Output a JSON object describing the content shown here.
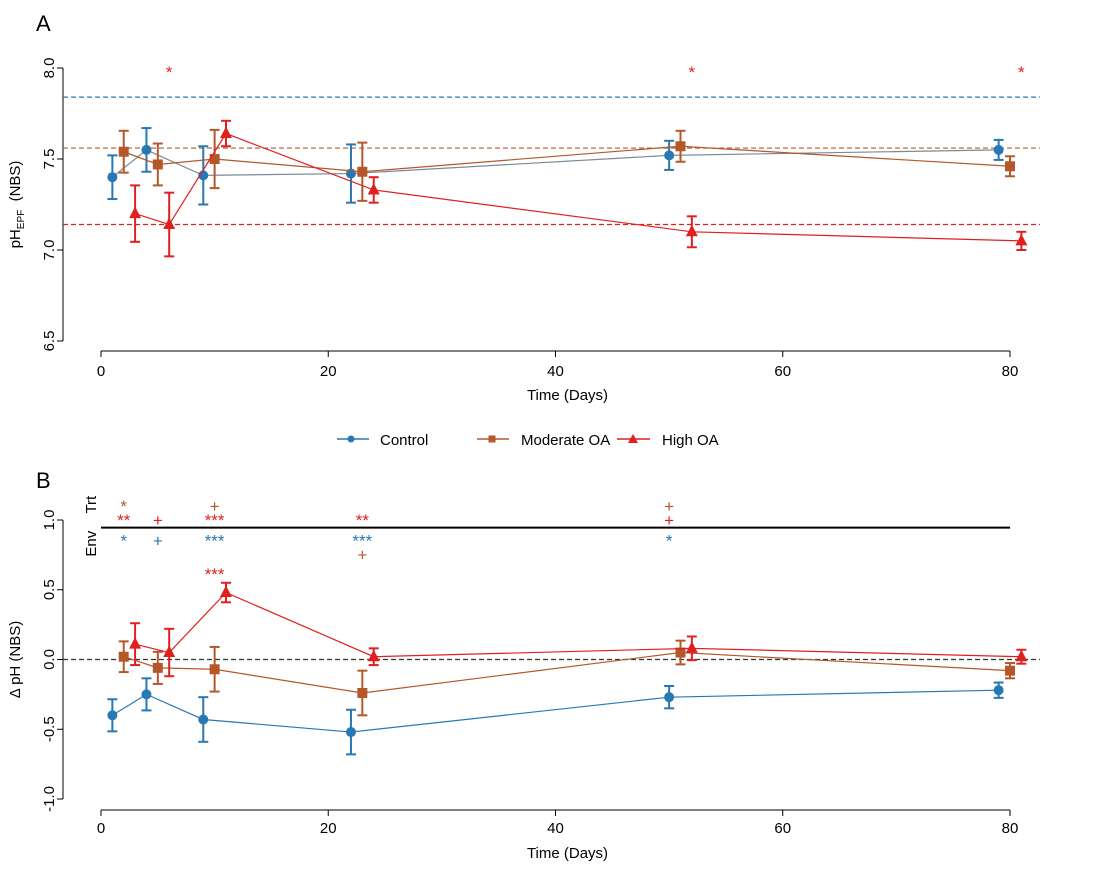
{
  "legend": {
    "control": "Control",
    "moderate": "Moderate OA",
    "high": "High OA"
  },
  "colors": {
    "control": "#2878b4",
    "moderate": "#b4582a",
    "high": "#e02020"
  },
  "chart_data": [
    {
      "panel": "A",
      "type": "line",
      "xlabel": "Time (Days)",
      "ylabel_main": "pH",
      "ylabel_sub": "EPF",
      "ylabel_suffix": "(NBS)",
      "xlim": [
        0,
        85
      ],
      "ylim": [
        6.5,
        8.0
      ],
      "xticks": [
        0,
        20,
        40,
        60,
        80
      ],
      "yticks": [
        6.5,
        7.0,
        7.5,
        8.0
      ],
      "ytick_labels": [
        "6.5",
        "7.0",
        "7.5",
        "8.0"
      ],
      "hlines": [
        {
          "series": "control",
          "y": 7.84
        },
        {
          "series": "moderate",
          "y": 7.56
        },
        {
          "series": "high",
          "y": 7.14
        }
      ],
      "series": [
        {
          "key": "control",
          "marker": "circle",
          "x": [
            1,
            4,
            9,
            22,
            50,
            79
          ],
          "y": [
            7.4,
            7.55,
            7.41,
            7.42,
            7.52,
            7.55
          ],
          "err": [
            0.12,
            0.12,
            0.16,
            0.16,
            0.08,
            0.055
          ]
        },
        {
          "key": "moderate",
          "marker": "square",
          "x": [
            2,
            5,
            10,
            23,
            51,
            80
          ],
          "y": [
            7.54,
            7.47,
            7.5,
            7.43,
            7.57,
            7.46
          ],
          "err": [
            0.115,
            0.115,
            0.16,
            0.16,
            0.085,
            0.055
          ]
        },
        {
          "key": "high",
          "marker": "triangle",
          "x": [
            3,
            6,
            11,
            24,
            52,
            81
          ],
          "y": [
            7.2,
            7.14,
            7.64,
            7.33,
            7.1,
            7.05
          ],
          "err": [
            0.155,
            0.175,
            0.07,
            0.07,
            0.085,
            0.05
          ]
        }
      ],
      "annotations": [
        {
          "text": "*",
          "x": 6,
          "series": "high"
        },
        {
          "text": "*",
          "x": 52,
          "series": "high"
        },
        {
          "text": "*",
          "x": 81,
          "series": "high"
        }
      ]
    },
    {
      "panel": "B",
      "type": "line",
      "xlabel": "Time (Days)",
      "ylabel": "Δ pH (NBS)",
      "xlim": [
        0,
        85
      ],
      "ylim": [
        -1.0,
        1.0
      ],
      "xticks": [
        0,
        20,
        40,
        60,
        80
      ],
      "yticks": [
        -1.0,
        -0.5,
        0.0,
        0.5,
        1.0
      ],
      "ytick_labels": [
        "-1.0",
        "-0.5",
        "0.0",
        "0.5",
        "1.0"
      ],
      "hline_zero": 0.0,
      "separator": {
        "y": 0.945,
        "x_from": 0,
        "x_to": 80
      },
      "row_labels": {
        "trt": "Trt",
        "env": "Env"
      },
      "series": [
        {
          "key": "control",
          "marker": "circle",
          "x": [
            1,
            4,
            9,
            22,
            50,
            79
          ],
          "y": [
            -0.4,
            -0.25,
            -0.43,
            -0.52,
            -0.27,
            -0.22
          ],
          "err": [
            0.115,
            0.115,
            0.16,
            0.16,
            0.08,
            0.055
          ]
        },
        {
          "key": "moderate",
          "marker": "square",
          "x": [
            2,
            5,
            10,
            23,
            51,
            80
          ],
          "y": [
            0.02,
            -0.06,
            -0.07,
            -0.24,
            0.05,
            -0.08
          ],
          "err": [
            0.11,
            0.115,
            0.16,
            0.16,
            0.085,
            0.055
          ]
        },
        {
          "key": "high",
          "marker": "triangle",
          "x": [
            3,
            6,
            11,
            24,
            52,
            81
          ],
          "y": [
            0.11,
            0.05,
            0.48,
            0.02,
            0.08,
            0.02
          ],
          "err": [
            0.15,
            0.17,
            0.07,
            0.06,
            0.085,
            0.05
          ]
        }
      ],
      "annotations": [
        {
          "text": "*",
          "x": 2,
          "y": 1.13,
          "series": "moderate"
        },
        {
          "text": "+",
          "x": 10,
          "y": 1.13,
          "series": "moderate"
        },
        {
          "text": "+",
          "x": 50,
          "y": 1.13,
          "series": "moderate"
        },
        {
          "text": "**",
          "x": 2,
          "y": 1.03,
          "series": "high"
        },
        {
          "text": "+",
          "x": 5,
          "y": 1.03,
          "series": "high"
        },
        {
          "text": "***",
          "x": 10,
          "y": 1.03,
          "series": "high"
        },
        {
          "text": "**",
          "x": 23,
          "y": 1.03,
          "series": "high"
        },
        {
          "text": "+",
          "x": 50,
          "y": 1.03,
          "series": "high"
        },
        {
          "text": "*",
          "x": 2,
          "y": 0.88,
          "series": "control"
        },
        {
          "text": "+",
          "x": 5,
          "y": 0.88,
          "series": "control"
        },
        {
          "text": "***",
          "x": 10,
          "y": 0.88,
          "series": "control"
        },
        {
          "text": "***",
          "x": 23,
          "y": 0.88,
          "series": "control"
        },
        {
          "text": "*",
          "x": 50,
          "y": 0.88,
          "series": "control"
        },
        {
          "text": "+",
          "x": 23,
          "y": 0.78,
          "series": "moderate"
        },
        {
          "text": "***",
          "x": 10,
          "y": 0.64,
          "series": "high"
        }
      ]
    }
  ],
  "panel_labels": [
    "A",
    "B"
  ]
}
